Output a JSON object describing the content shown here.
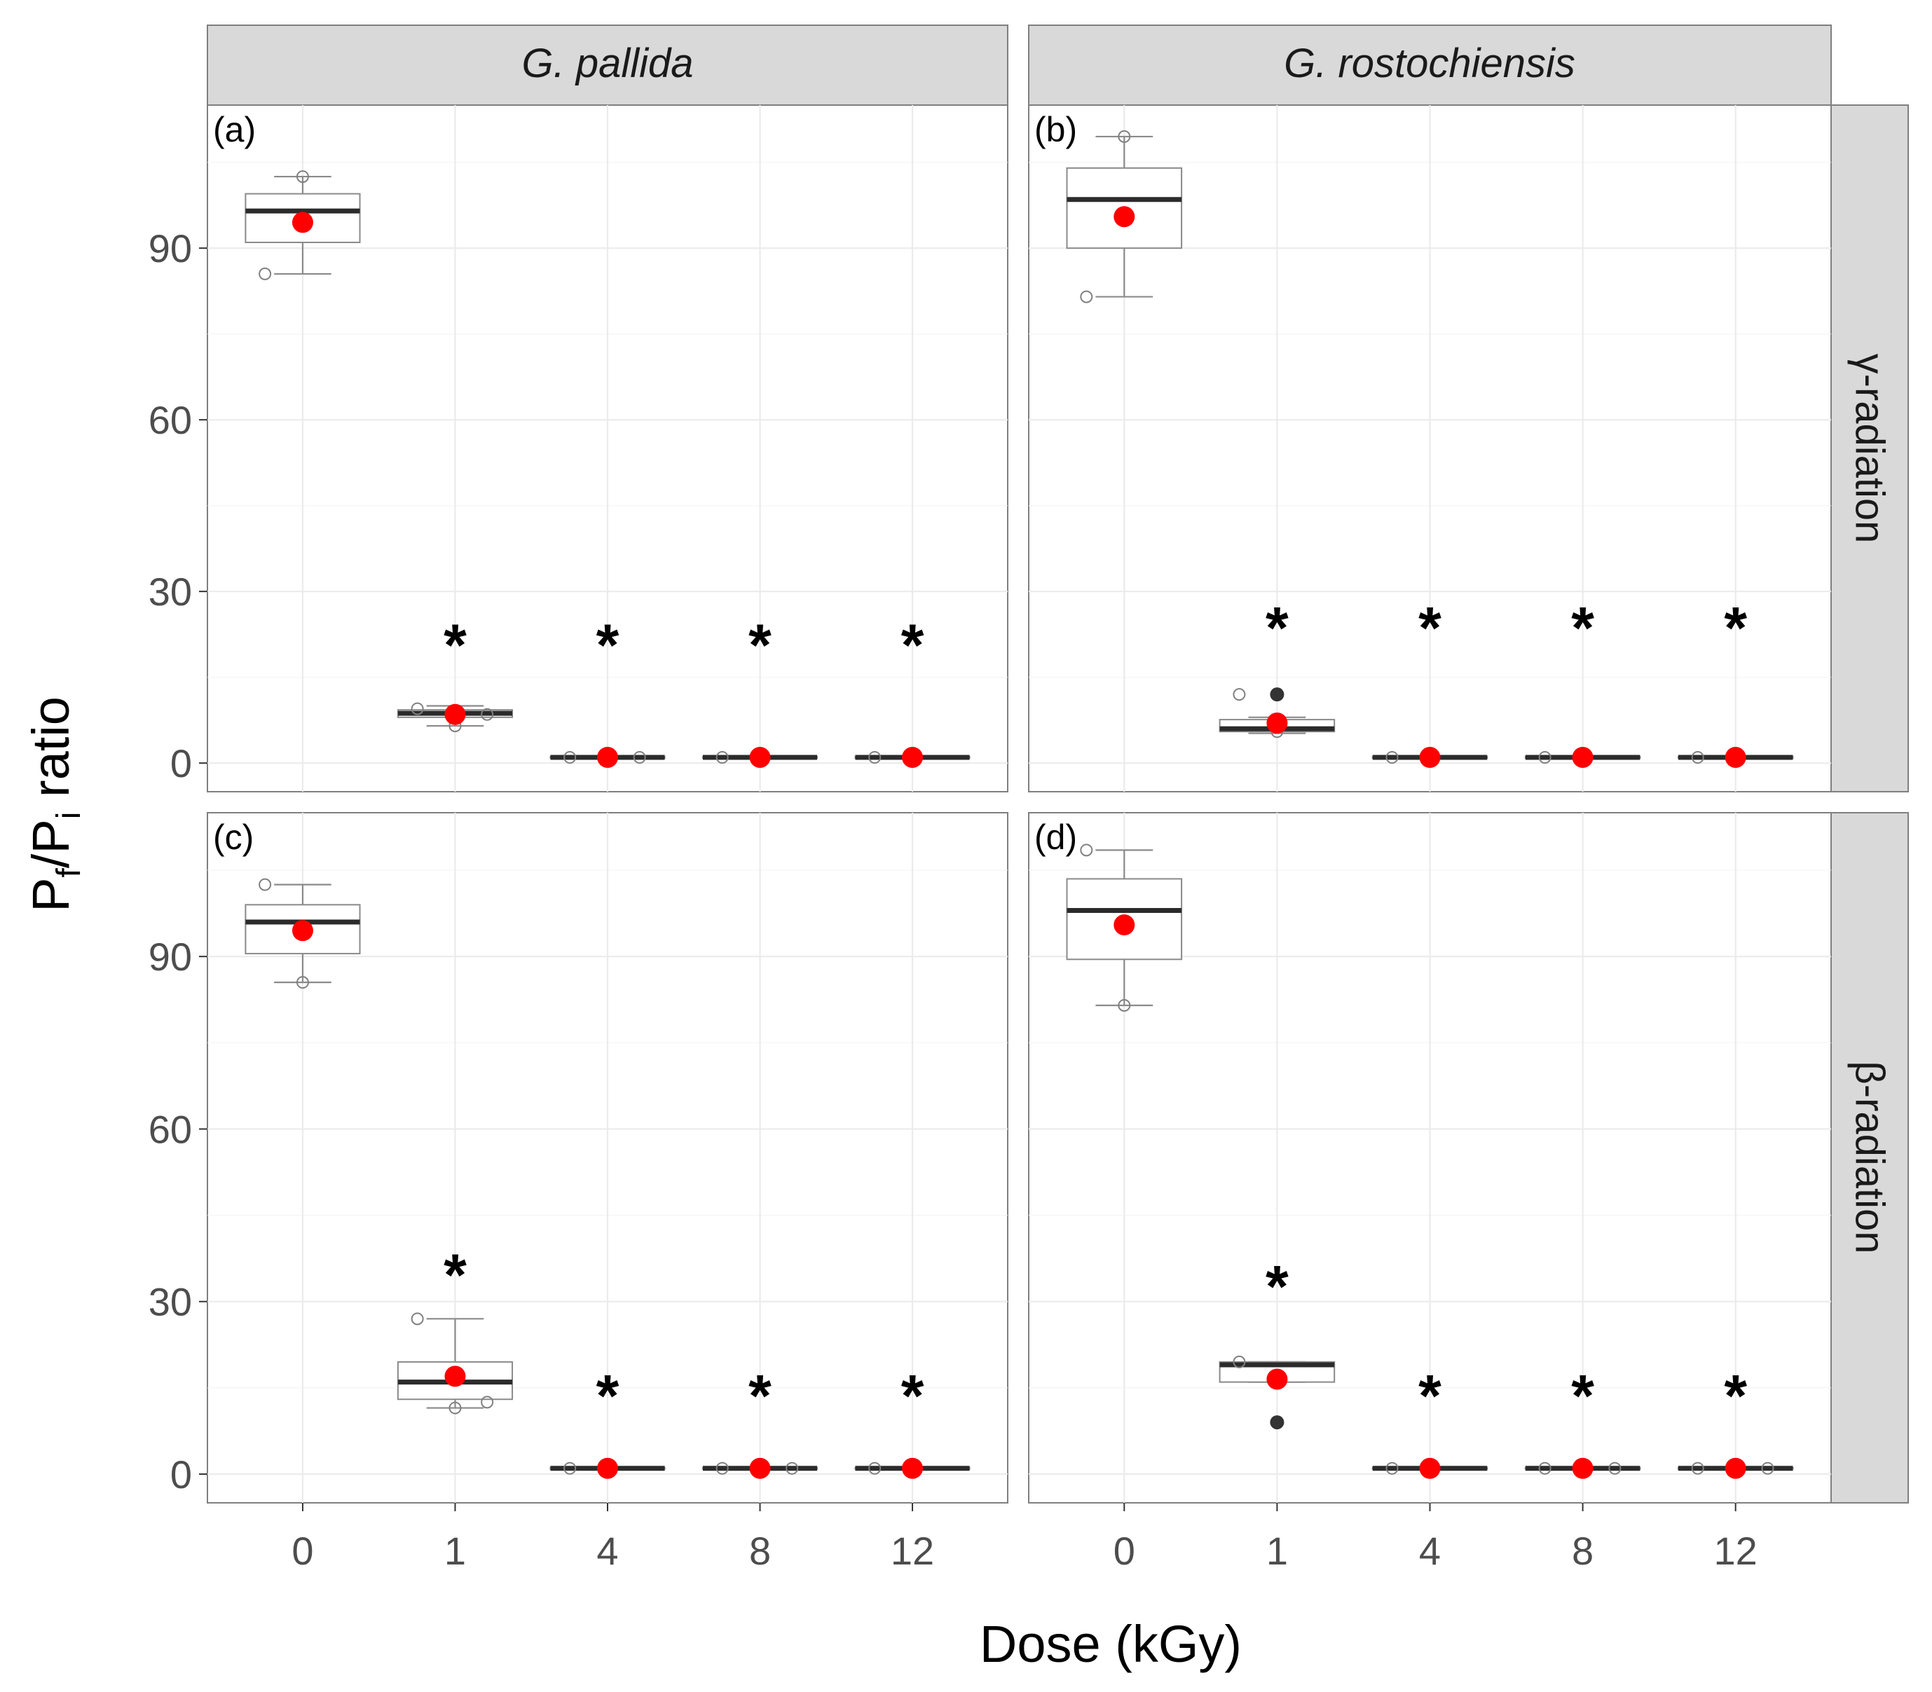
{
  "chart_data": {
    "type": "boxplot",
    "xlabel": "Dose (kGy)",
    "ylabel_main": "P",
    "ylabel_sub1": "f",
    "ylabel_mid": "/P",
    "ylabel_sub2": "i",
    "ylabel_rest": " ratio",
    "categories": [
      "0",
      "1",
      "4",
      "8",
      "12"
    ],
    "yticks": [
      "0",
      "30",
      "60",
      "90"
    ],
    "ylim": [
      -5,
      115
    ],
    "column_labels": [
      "G. pallida",
      "G. rostochiensis"
    ],
    "row_labels": [
      "γ-radiation",
      "β-radiation"
    ],
    "significance_marker": "*",
    "colors": {
      "mean": "#ff0000",
      "outlier": "#333333",
      "strip": "#d9d9d9",
      "median": "#2b2b2b"
    },
    "panels": [
      {
        "label": "(a)",
        "species": "G. pallida",
        "radiation": "γ-radiation",
        "groups": [
          {
            "dose": "0",
            "lower": 85.5,
            "q1": 91,
            "median": 96.5,
            "q3": 99.5,
            "upper": 102.5,
            "mean": 94.5,
            "points": [
              85.5,
              102.5
            ],
            "outliers": [],
            "sig": false
          },
          {
            "dose": "1",
            "lower": 6.5,
            "q1": 8,
            "median": 8.7,
            "q3": 9.3,
            "upper": 10,
            "mean": 8.5,
            "points": [
              9.5,
              6.5,
              8.5
            ],
            "outliers": [],
            "sig": true,
            "star_y": 22
          },
          {
            "dose": "4",
            "lower": 0.8,
            "q1": 0.9,
            "median": 1,
            "q3": 1.1,
            "upper": 1.2,
            "mean": 1,
            "points": [
              1,
              1.1,
              1
            ],
            "outliers": [],
            "sig": true,
            "star_y": 22
          },
          {
            "dose": "8",
            "lower": 0.8,
            "q1": 0.9,
            "median": 1,
            "q3": 1.1,
            "upper": 1.2,
            "mean": 1,
            "points": [
              1,
              1
            ],
            "outliers": [],
            "sig": true,
            "star_y": 22
          },
          {
            "dose": "12",
            "lower": 0.8,
            "q1": 0.9,
            "median": 1,
            "q3": 1.1,
            "upper": 1.2,
            "mean": 1,
            "points": [
              1,
              1
            ],
            "outliers": [],
            "sig": true,
            "star_y": 22
          }
        ]
      },
      {
        "label": "(b)",
        "species": "G. rostochiensis",
        "radiation": "γ-radiation",
        "groups": [
          {
            "dose": "0",
            "lower": 81.5,
            "q1": 90,
            "median": 98.5,
            "q3": 104,
            "upper": 109.5,
            "mean": 95.5,
            "points": [
              81.5,
              109.5
            ],
            "outliers": [],
            "sig": false
          },
          {
            "dose": "1",
            "lower": 5.2,
            "q1": 5.5,
            "median": 6,
            "q3": 7.6,
            "upper": 8,
            "mean": 7,
            "points": [
              12,
              5.5
            ],
            "outliers": [
              12
            ],
            "sig": true,
            "star_y": 25
          },
          {
            "dose": "4",
            "lower": 0.8,
            "q1": 0.9,
            "median": 1,
            "q3": 1.1,
            "upper": 1.2,
            "mean": 1,
            "points": [
              1
            ],
            "outliers": [],
            "sig": true,
            "star_y": 25
          },
          {
            "dose": "8",
            "lower": 0.8,
            "q1": 0.9,
            "median": 1,
            "q3": 1.1,
            "upper": 1.2,
            "mean": 1,
            "points": [
              1,
              1
            ],
            "outliers": [],
            "sig": true,
            "star_y": 25
          },
          {
            "dose": "12",
            "lower": 0.8,
            "q1": 0.9,
            "median": 1,
            "q3": 1.1,
            "upper": 1.2,
            "mean": 1,
            "points": [
              1,
              1
            ],
            "outliers": [],
            "sig": true,
            "star_y": 25
          }
        ]
      },
      {
        "label": "(c)",
        "species": "G. pallida",
        "radiation": "β-radiation",
        "groups": [
          {
            "dose": "0",
            "lower": 85.5,
            "q1": 90.5,
            "median": 96,
            "q3": 99,
            "upper": 102.5,
            "mean": 94.5,
            "points": [
              102.5,
              85.5
            ],
            "outliers": [],
            "sig": false
          },
          {
            "dose": "1",
            "lower": 11.5,
            "q1": 13,
            "median": 16,
            "q3": 19.5,
            "upper": 27,
            "mean": 17,
            "points": [
              27,
              11.5,
              12.5
            ],
            "outliers": [],
            "sig": true,
            "star_y": 36
          },
          {
            "dose": "4",
            "lower": 0.8,
            "q1": 0.9,
            "median": 1,
            "q3": 1.1,
            "upper": 1.2,
            "mean": 1,
            "points": [
              1
            ],
            "outliers": [],
            "sig": true,
            "star_y": 15
          },
          {
            "dose": "8",
            "lower": 0.8,
            "q1": 0.9,
            "median": 1,
            "q3": 1.1,
            "upper": 1.2,
            "mean": 1,
            "points": [
              1,
              1,
              1
            ],
            "outliers": [],
            "sig": true,
            "star_y": 15
          },
          {
            "dose": "12",
            "lower": 0.8,
            "q1": 0.9,
            "median": 1,
            "q3": 1.1,
            "upper": 1.2,
            "mean": 1,
            "points": [
              1,
              1
            ],
            "outliers": [],
            "sig": true,
            "star_y": 15
          }
        ]
      },
      {
        "label": "(d)",
        "species": "G. rostochiensis",
        "radiation": "β-radiation",
        "groups": [
          {
            "dose": "0",
            "lower": 81.5,
            "q1": 89.5,
            "median": 98,
            "q3": 103.5,
            "upper": 108.5,
            "mean": 95.5,
            "points": [
              108.5,
              81.5
            ],
            "outliers": [],
            "sig": false
          },
          {
            "dose": "1",
            "lower": 16,
            "q1": 16,
            "median": 19,
            "q3": 19.5,
            "upper": 19.5,
            "mean": 16.5,
            "points": [
              19.5,
              9
            ],
            "outliers": [
              9
            ],
            "sig": true,
            "star_y": 34
          },
          {
            "dose": "4",
            "lower": 0.8,
            "q1": 0.9,
            "median": 1,
            "q3": 1.1,
            "upper": 1.2,
            "mean": 1,
            "points": [
              1,
              1
            ],
            "outliers": [],
            "sig": true,
            "star_y": 15
          },
          {
            "dose": "8",
            "lower": 0.8,
            "q1": 0.9,
            "median": 1,
            "q3": 1.1,
            "upper": 1.2,
            "mean": 1,
            "points": [
              1,
              1,
              1
            ],
            "outliers": [],
            "sig": true,
            "star_y": 15
          },
          {
            "dose": "12",
            "lower": 0.8,
            "q1": 0.9,
            "median": 1,
            "q3": 1.1,
            "upper": 1.2,
            "mean": 1,
            "points": [
              1,
              1,
              1
            ],
            "outliers": [],
            "sig": true,
            "star_y": 15
          }
        ]
      }
    ]
  }
}
